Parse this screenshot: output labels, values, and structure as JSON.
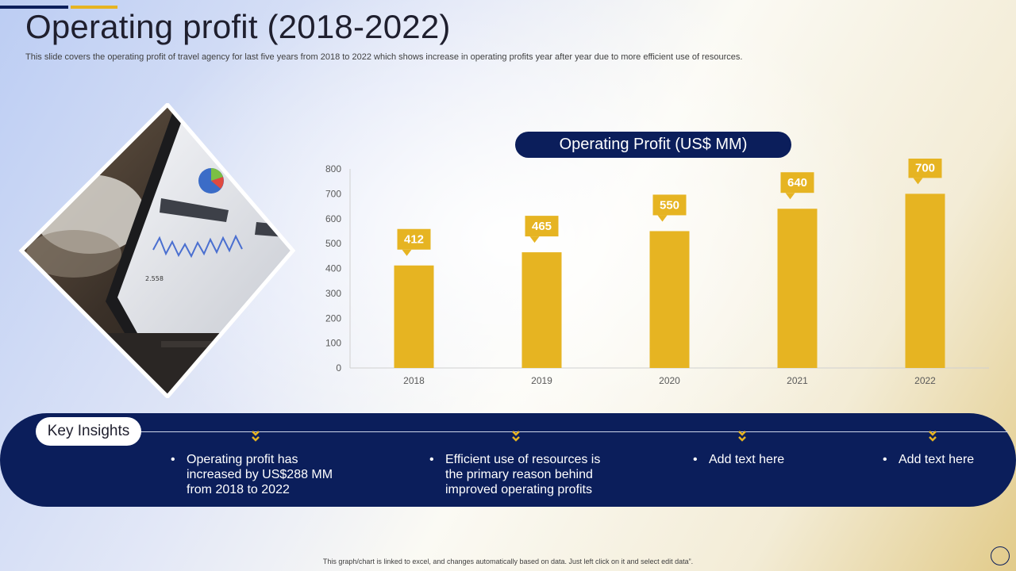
{
  "slide": {
    "title": "Operating profit (2018-2022)",
    "subtitle": "This slide covers the operating profit of travel agency for last five years from 2018 to 2022 which shows increase in operating profits year after year due to more efficient use of resources.",
    "footer_note": "This graph/chart is linked to excel, and changes automatically based on data. Just left click on it and select edit data”.",
    "accent_color": "#0b1e5b",
    "bar_color": "#e6b422"
  },
  "chart_data": {
    "type": "bar",
    "title": "Operating Profit (US$ MM)",
    "categories": [
      "2018",
      "2019",
      "2020",
      "2021",
      "2022"
    ],
    "values": [
      412,
      465,
      550,
      640,
      700
    ],
    "ylim": [
      0,
      800
    ],
    "yticks": [
      0,
      100,
      200,
      300,
      400,
      500,
      600,
      700,
      800
    ],
    "grid": false,
    "data_labels": true
  },
  "insights": {
    "label": "Key Insights",
    "items": [
      {
        "line1": "Operating profit has",
        "line2": "increased by US$288 MM",
        "line3": "from 2018 to 2022"
      },
      {
        "line1": "Efficient use of resources is",
        "line2": "the primary reason behind",
        "line3": "improved operating profits"
      },
      {
        "line1": "Add text here",
        "line2": "",
        "line3": ""
      },
      {
        "line1": "Add text here",
        "line2": "",
        "line3": ""
      }
    ],
    "bullet": "•"
  }
}
